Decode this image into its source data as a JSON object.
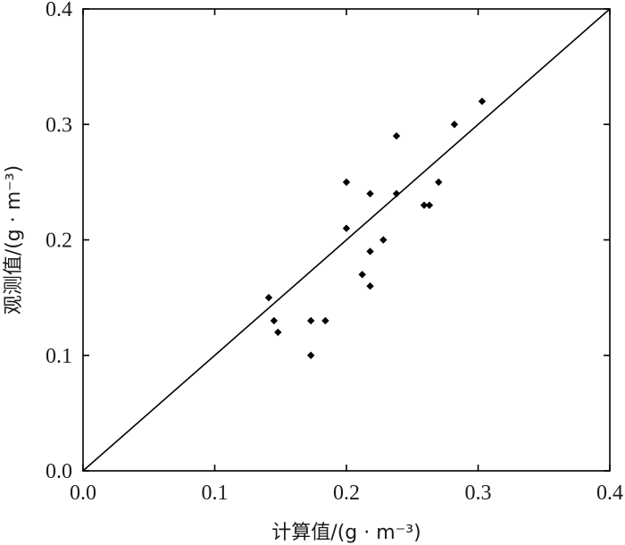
{
  "chart_data": {
    "type": "scatter",
    "xlabel": "计算值/(g · m⁻³)",
    "ylabel": "观测值/(g · m⁻³)",
    "xlim": [
      0.0,
      0.4
    ],
    "ylim": [
      0.0,
      0.4
    ],
    "xticks": [
      "0.0",
      "0.1",
      "0.2",
      "0.3",
      "0.4"
    ],
    "yticks": [
      "0.0",
      "0.1",
      "0.2",
      "0.3",
      "0.4"
    ],
    "grid": false,
    "reference_line": {
      "from": [
        0.0,
        0.0
      ],
      "to": [
        0.4,
        0.4
      ]
    },
    "points": [
      {
        "x": 0.141,
        "y": 0.15
      },
      {
        "x": 0.145,
        "y": 0.13
      },
      {
        "x": 0.148,
        "y": 0.12
      },
      {
        "x": 0.173,
        "y": 0.13
      },
      {
        "x": 0.173,
        "y": 0.1
      },
      {
        "x": 0.184,
        "y": 0.13
      },
      {
        "x": 0.2,
        "y": 0.25
      },
      {
        "x": 0.2,
        "y": 0.21
      },
      {
        "x": 0.212,
        "y": 0.17
      },
      {
        "x": 0.218,
        "y": 0.24
      },
      {
        "x": 0.218,
        "y": 0.19
      },
      {
        "x": 0.218,
        "y": 0.16
      },
      {
        "x": 0.228,
        "y": 0.2
      },
      {
        "x": 0.238,
        "y": 0.29
      },
      {
        "x": 0.238,
        "y": 0.24
      },
      {
        "x": 0.259,
        "y": 0.23
      },
      {
        "x": 0.263,
        "y": 0.23
      },
      {
        "x": 0.27,
        "y": 0.25
      },
      {
        "x": 0.282,
        "y": 0.3
      },
      {
        "x": 0.303,
        "y": 0.32
      }
    ]
  }
}
